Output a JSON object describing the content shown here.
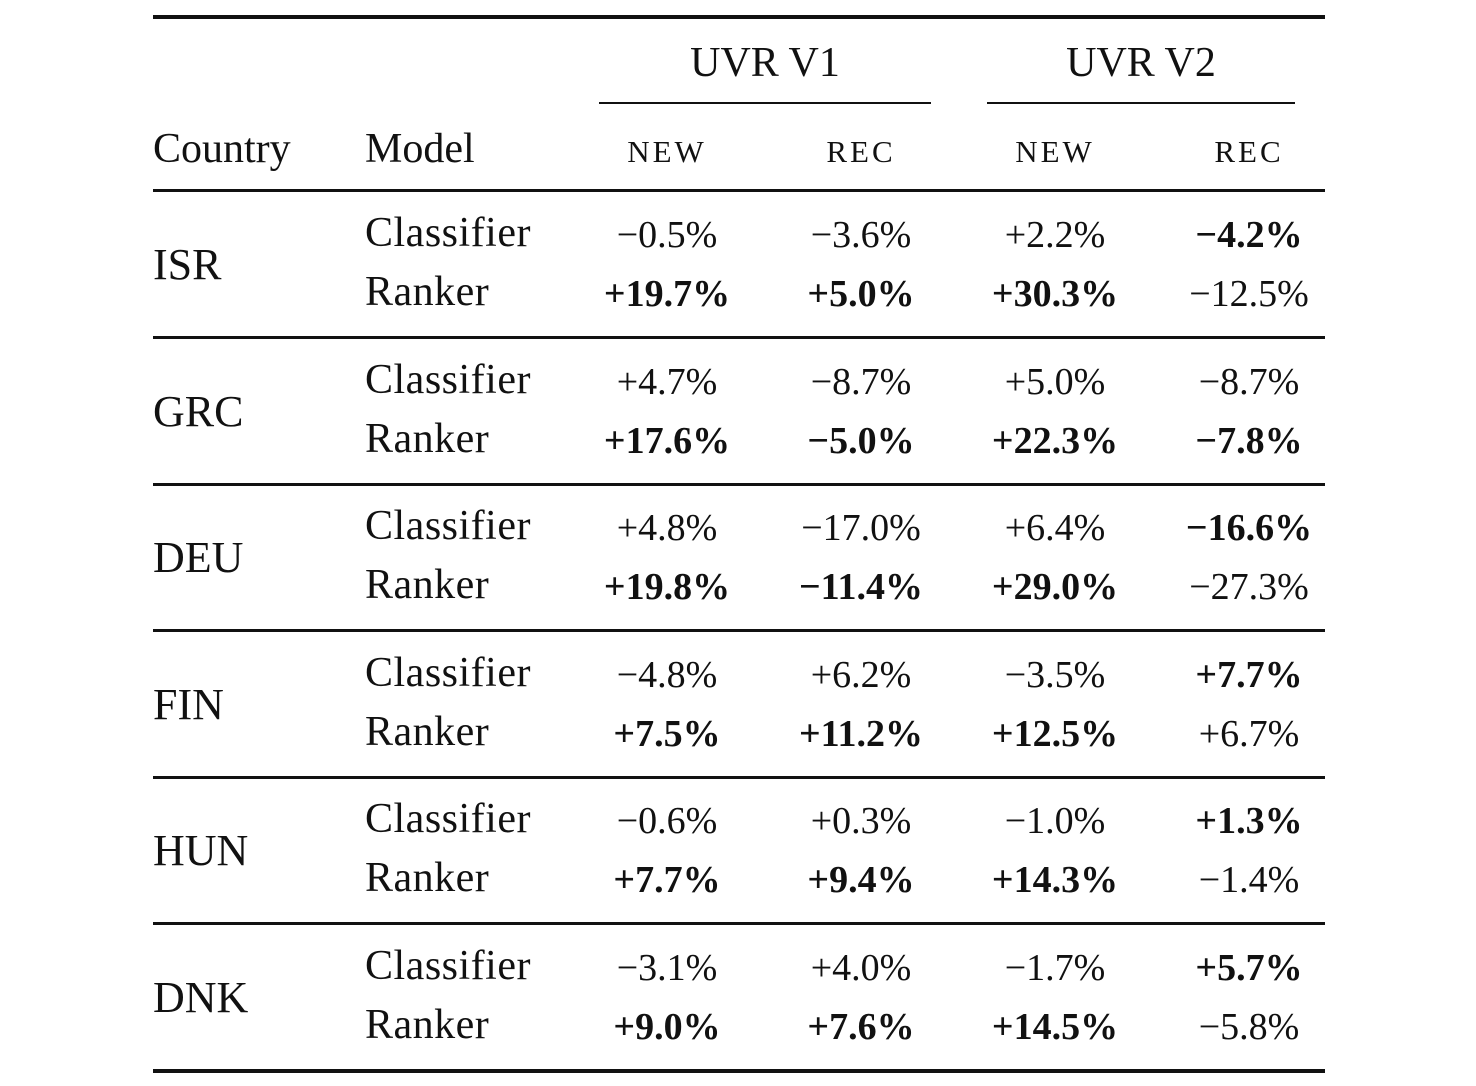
{
  "header": {
    "country_label": "Country",
    "model_label": "Model",
    "groups": [
      {
        "label": "UVR V1",
        "subcols": [
          "NEW",
          "REC"
        ]
      },
      {
        "label": "UVR V2",
        "subcols": [
          "NEW",
          "REC"
        ]
      }
    ]
  },
  "rows": [
    {
      "country": "ISR",
      "models": [
        {
          "model": "Classifier",
          "values": [
            {
              "text": "−0.5%",
              "bold": false
            },
            {
              "text": "−3.6%",
              "bold": false
            },
            {
              "text": "+2.2%",
              "bold": false
            },
            {
              "text": "−4.2%",
              "bold": true
            }
          ]
        },
        {
          "model": "Ranker",
          "values": [
            {
              "text": "+19.7%",
              "bold": true
            },
            {
              "text": "+5.0%",
              "bold": true
            },
            {
              "text": "+30.3%",
              "bold": true
            },
            {
              "text": "−12.5%",
              "bold": false
            }
          ]
        }
      ]
    },
    {
      "country": "GRC",
      "models": [
        {
          "model": "Classifier",
          "values": [
            {
              "text": "+4.7%",
              "bold": false
            },
            {
              "text": "−8.7%",
              "bold": false
            },
            {
              "text": "+5.0%",
              "bold": false
            },
            {
              "text": "−8.7%",
              "bold": false
            }
          ]
        },
        {
          "model": "Ranker",
          "values": [
            {
              "text": "+17.6%",
              "bold": true
            },
            {
              "text": "−5.0%",
              "bold": true
            },
            {
              "text": "+22.3%",
              "bold": true
            },
            {
              "text": "−7.8%",
              "bold": true
            }
          ]
        }
      ]
    },
    {
      "country": "DEU",
      "models": [
        {
          "model": "Classifier",
          "values": [
            {
              "text": "+4.8%",
              "bold": false
            },
            {
              "text": "−17.0%",
              "bold": false
            },
            {
              "text": "+6.4%",
              "bold": false
            },
            {
              "text": "−16.6%",
              "bold": true
            }
          ]
        },
        {
          "model": "Ranker",
          "values": [
            {
              "text": "+19.8%",
              "bold": true
            },
            {
              "text": "−11.4%",
              "bold": true
            },
            {
              "text": "+29.0%",
              "bold": true
            },
            {
              "text": "−27.3%",
              "bold": false
            }
          ]
        }
      ]
    },
    {
      "country": "FIN",
      "models": [
        {
          "model": "Classifier",
          "values": [
            {
              "text": "−4.8%",
              "bold": false
            },
            {
              "text": "+6.2%",
              "bold": false
            },
            {
              "text": "−3.5%",
              "bold": false
            },
            {
              "text": "+7.7%",
              "bold": true
            }
          ]
        },
        {
          "model": "Ranker",
          "values": [
            {
              "text": "+7.5%",
              "bold": true
            },
            {
              "text": "+11.2%",
              "bold": true
            },
            {
              "text": "+12.5%",
              "bold": true
            },
            {
              "text": "+6.7%",
              "bold": false
            }
          ]
        }
      ]
    },
    {
      "country": "HUN",
      "models": [
        {
          "model": "Classifier",
          "values": [
            {
              "text": "−0.6%",
              "bold": false
            },
            {
              "text": "+0.3%",
              "bold": false
            },
            {
              "text": "−1.0%",
              "bold": false
            },
            {
              "text": "+1.3%",
              "bold": true
            }
          ]
        },
        {
          "model": "Ranker",
          "values": [
            {
              "text": "+7.7%",
              "bold": true
            },
            {
              "text": "+9.4%",
              "bold": true
            },
            {
              "text": "+14.3%",
              "bold": true
            },
            {
              "text": "−1.4%",
              "bold": false
            }
          ]
        }
      ]
    },
    {
      "country": "DNK",
      "models": [
        {
          "model": "Classifier",
          "values": [
            {
              "text": "−3.1%",
              "bold": false
            },
            {
              "text": "+4.0%",
              "bold": false
            },
            {
              "text": "−1.7%",
              "bold": false
            },
            {
              "text": "+5.7%",
              "bold": true
            }
          ]
        },
        {
          "model": "Ranker",
          "values": [
            {
              "text": "+9.0%",
              "bold": true
            },
            {
              "text": "+7.6%",
              "bold": true
            },
            {
              "text": "+14.5%",
              "bold": true
            },
            {
              "text": "−5.8%",
              "bold": false
            }
          ]
        }
      ]
    }
  ]
}
